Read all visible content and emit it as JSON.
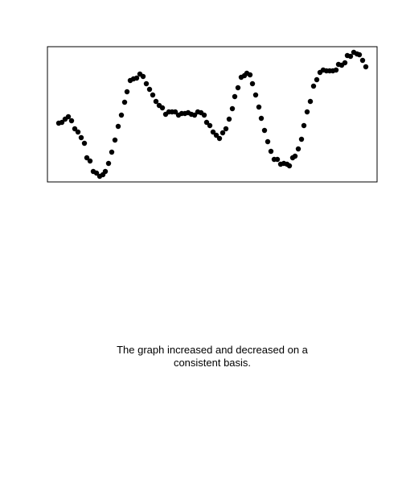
{
  "chart_data": {
    "type": "scatter",
    "caption": "The graph increased and decreased on a consistent basis.",
    "color": "#000000",
    "xlim": [
      0,
      410
    ],
    "ylim": [
      0,
      168
    ],
    "x": [
      14,
      18,
      22,
      26,
      30,
      34,
      38,
      42,
      46,
      49,
      53,
      57,
      61,
      65,
      69,
      72,
      76,
      80,
      84,
      88,
      92,
      96,
      99,
      103,
      107,
      111,
      115,
      119,
      123,
      127,
      131,
      135,
      139,
      143,
      147,
      151,
      155,
      159,
      163,
      167,
      171,
      175,
      179,
      183,
      187,
      191,
      195,
      198,
      202,
      206,
      210,
      214,
      218,
      222,
      226,
      230,
      233,
      237,
      241,
      245,
      248,
      252,
      255,
      259,
      263,
      266,
      270,
      274,
      278,
      282,
      286,
      290,
      294,
      298,
      301,
      305,
      308,
      312,
      316,
      319,
      323,
      327,
      331,
      335,
      339,
      343,
      347,
      351,
      355,
      359,
      362,
      366,
      370,
      373,
      377,
      381,
      385,
      388,
      392,
      396
    ],
    "values": [
      73,
      74,
      78,
      81,
      76,
      66,
      62,
      55,
      48,
      30,
      26,
      13,
      11,
      7,
      9,
      13,
      23,
      37,
      52,
      69,
      83,
      99,
      112,
      126,
      128,
      129,
      134,
      131,
      122,
      115,
      108,
      100,
      95,
      92,
      84,
      87,
      87,
      87,
      83,
      85,
      85,
      86,
      84,
      83,
      87,
      86,
      83,
      74,
      70,
      62,
      58,
      54,
      61,
      66,
      78,
      91,
      106,
      117,
      130,
      132,
      135,
      133,
      122,
      108,
      93,
      79,
      64,
      50,
      38,
      28,
      28,
      22,
      23,
      22,
      20,
      30,
      32,
      41,
      53,
      70,
      87,
      100,
      119,
      127,
      136,
      139,
      138,
      138,
      138,
      139,
      146,
      145,
      148,
      157,
      156,
      161,
      159,
      158,
      151,
      143
    ]
  }
}
